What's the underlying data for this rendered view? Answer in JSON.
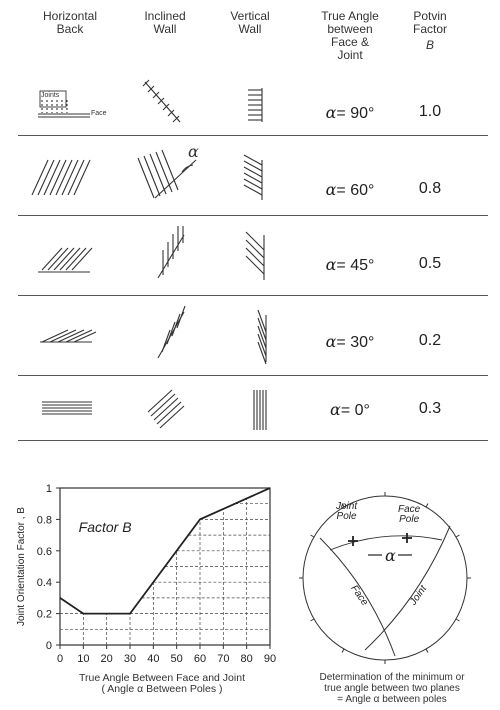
{
  "headers": {
    "col1": [
      "Horizontal",
      "Back"
    ],
    "col2": [
      "Inclined",
      "Wall"
    ],
    "col3": [
      "Vertical",
      "Wall"
    ],
    "col4": [
      "True Angle",
      "between",
      "Face &",
      "Joint"
    ],
    "col5": [
      "Potvin",
      "Factor"
    ],
    "col5_symbol": "B"
  },
  "sketch_labels": {
    "joints": "Joints",
    "face": "Face",
    "alpha": "α"
  },
  "rows": [
    {
      "alpha_symbol": "α",
      "angle_text": "= 90°",
      "factor": "1.0"
    },
    {
      "alpha_symbol": "α",
      "angle_text": "= 60°",
      "factor": "0.8"
    },
    {
      "alpha_symbol": "α",
      "angle_text": "= 45°",
      "factor": "0.5"
    },
    {
      "alpha_symbol": "α",
      "angle_text": "= 30°",
      "factor": "0.2"
    },
    {
      "alpha_symbol": "α",
      "angle_text": "= 0°",
      "factor": "0.3"
    }
  ],
  "chart_data": {
    "type": "line",
    "title": "Factor B",
    "xlabel": [
      "True Angle Between Face and Joint",
      "( Angle α Between Poles )"
    ],
    "ylabel": "Joint Orientation Factor , B",
    "xlim": [
      0,
      90
    ],
    "ylim": [
      0,
      1
    ],
    "x_ticks": [
      "0",
      "10",
      "20",
      "30",
      "40",
      "50",
      "60",
      "70",
      "80",
      "90"
    ],
    "y_ticks": [
      "0",
      "0.2",
      "0.4",
      "0.6",
      "0.8",
      "1"
    ],
    "series": [
      {
        "x": [
          0,
          10,
          30,
          60,
          90
        ],
        "y": [
          0.3,
          0.2,
          0.2,
          0.8,
          1.0
        ]
      }
    ]
  },
  "stereonet": {
    "joint_pole": [
      "Joint",
      "Pole"
    ],
    "face_pole": [
      "Face",
      "Pole"
    ],
    "face": "Face",
    "joint": "Joint",
    "alpha": "α",
    "caption": [
      "Determination of the minimum or",
      "true angle between two planes",
      "= Angle  α  between poles"
    ]
  }
}
